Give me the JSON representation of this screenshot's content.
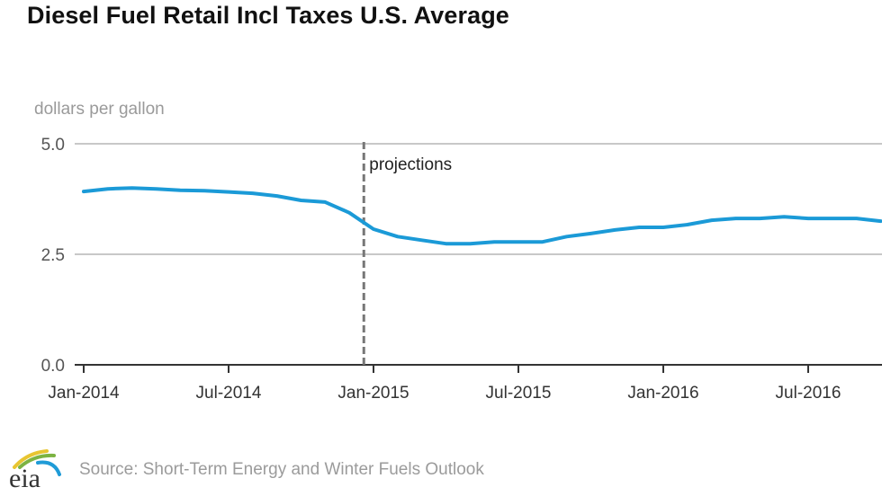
{
  "chart_data": {
    "type": "line",
    "title": "Diesel Fuel Retail Incl Taxes U.S. Average",
    "ylabel": "dollars per gallon",
    "xlabel": "",
    "ylim": [
      0,
      5
    ],
    "yticks": [
      {
        "value": 0,
        "label": "0.0"
      },
      {
        "value": 2.5,
        "label": "2.5"
      },
      {
        "value": 5,
        "label": "5.0"
      }
    ],
    "xticks": [
      {
        "month_index": 0,
        "label": "Jan-2014"
      },
      {
        "month_index": 6,
        "label": "Jul-2014"
      },
      {
        "month_index": 12,
        "label": "Jan-2015"
      },
      {
        "month_index": 18,
        "label": "Jul-2015"
      },
      {
        "month_index": 24,
        "label": "Jan-2016"
      },
      {
        "month_index": 30,
        "label": "Jul-2016"
      }
    ],
    "xlim_months": [
      -0.4,
      33.2
    ],
    "grid": true,
    "annotation": {
      "label": "projections",
      "month_index": 11.6
    },
    "series": [
      {
        "name": "Diesel Fuel Retail Incl Taxes U.S. Average",
        "color": "#1b9ad7",
        "x": [
          "Jan-2014",
          "Feb-2014",
          "Mar-2014",
          "Apr-2014",
          "May-2014",
          "Jun-2014",
          "Jul-2014",
          "Aug-2014",
          "Sep-2014",
          "Oct-2014",
          "Nov-2014",
          "Dec-2014",
          "Jan-2015",
          "Feb-2015",
          "Mar-2015",
          "Apr-2015",
          "May-2015",
          "Jun-2015",
          "Jul-2015",
          "Aug-2015",
          "Sep-2015",
          "Oct-2015",
          "Nov-2015",
          "Dec-2015",
          "Jan-2016",
          "Feb-2016",
          "Mar-2016",
          "Apr-2016",
          "May-2016",
          "Jun-2016",
          "Jul-2016",
          "Aug-2016",
          "Sep-2016",
          "Oct-2016"
        ],
        "values": [
          3.92,
          3.98,
          4.0,
          3.98,
          3.95,
          3.94,
          3.91,
          3.88,
          3.82,
          3.72,
          3.68,
          3.44,
          3.07,
          2.9,
          2.82,
          2.74,
          2.74,
          2.78,
          2.78,
          2.78,
          2.9,
          2.97,
          3.05,
          3.11,
          3.11,
          3.17,
          3.27,
          3.31,
          3.31,
          3.35,
          3.31,
          3.31,
          3.31,
          3.25
        ]
      }
    ]
  },
  "footer": {
    "source": "Source: Short-Term Energy and Winter Fuels Outlook",
    "logo_text": "eia"
  },
  "colors": {
    "line": "#1b9ad7",
    "grid": "#c8c8c8",
    "axis": "#333333",
    "dashed": "#777777"
  }
}
